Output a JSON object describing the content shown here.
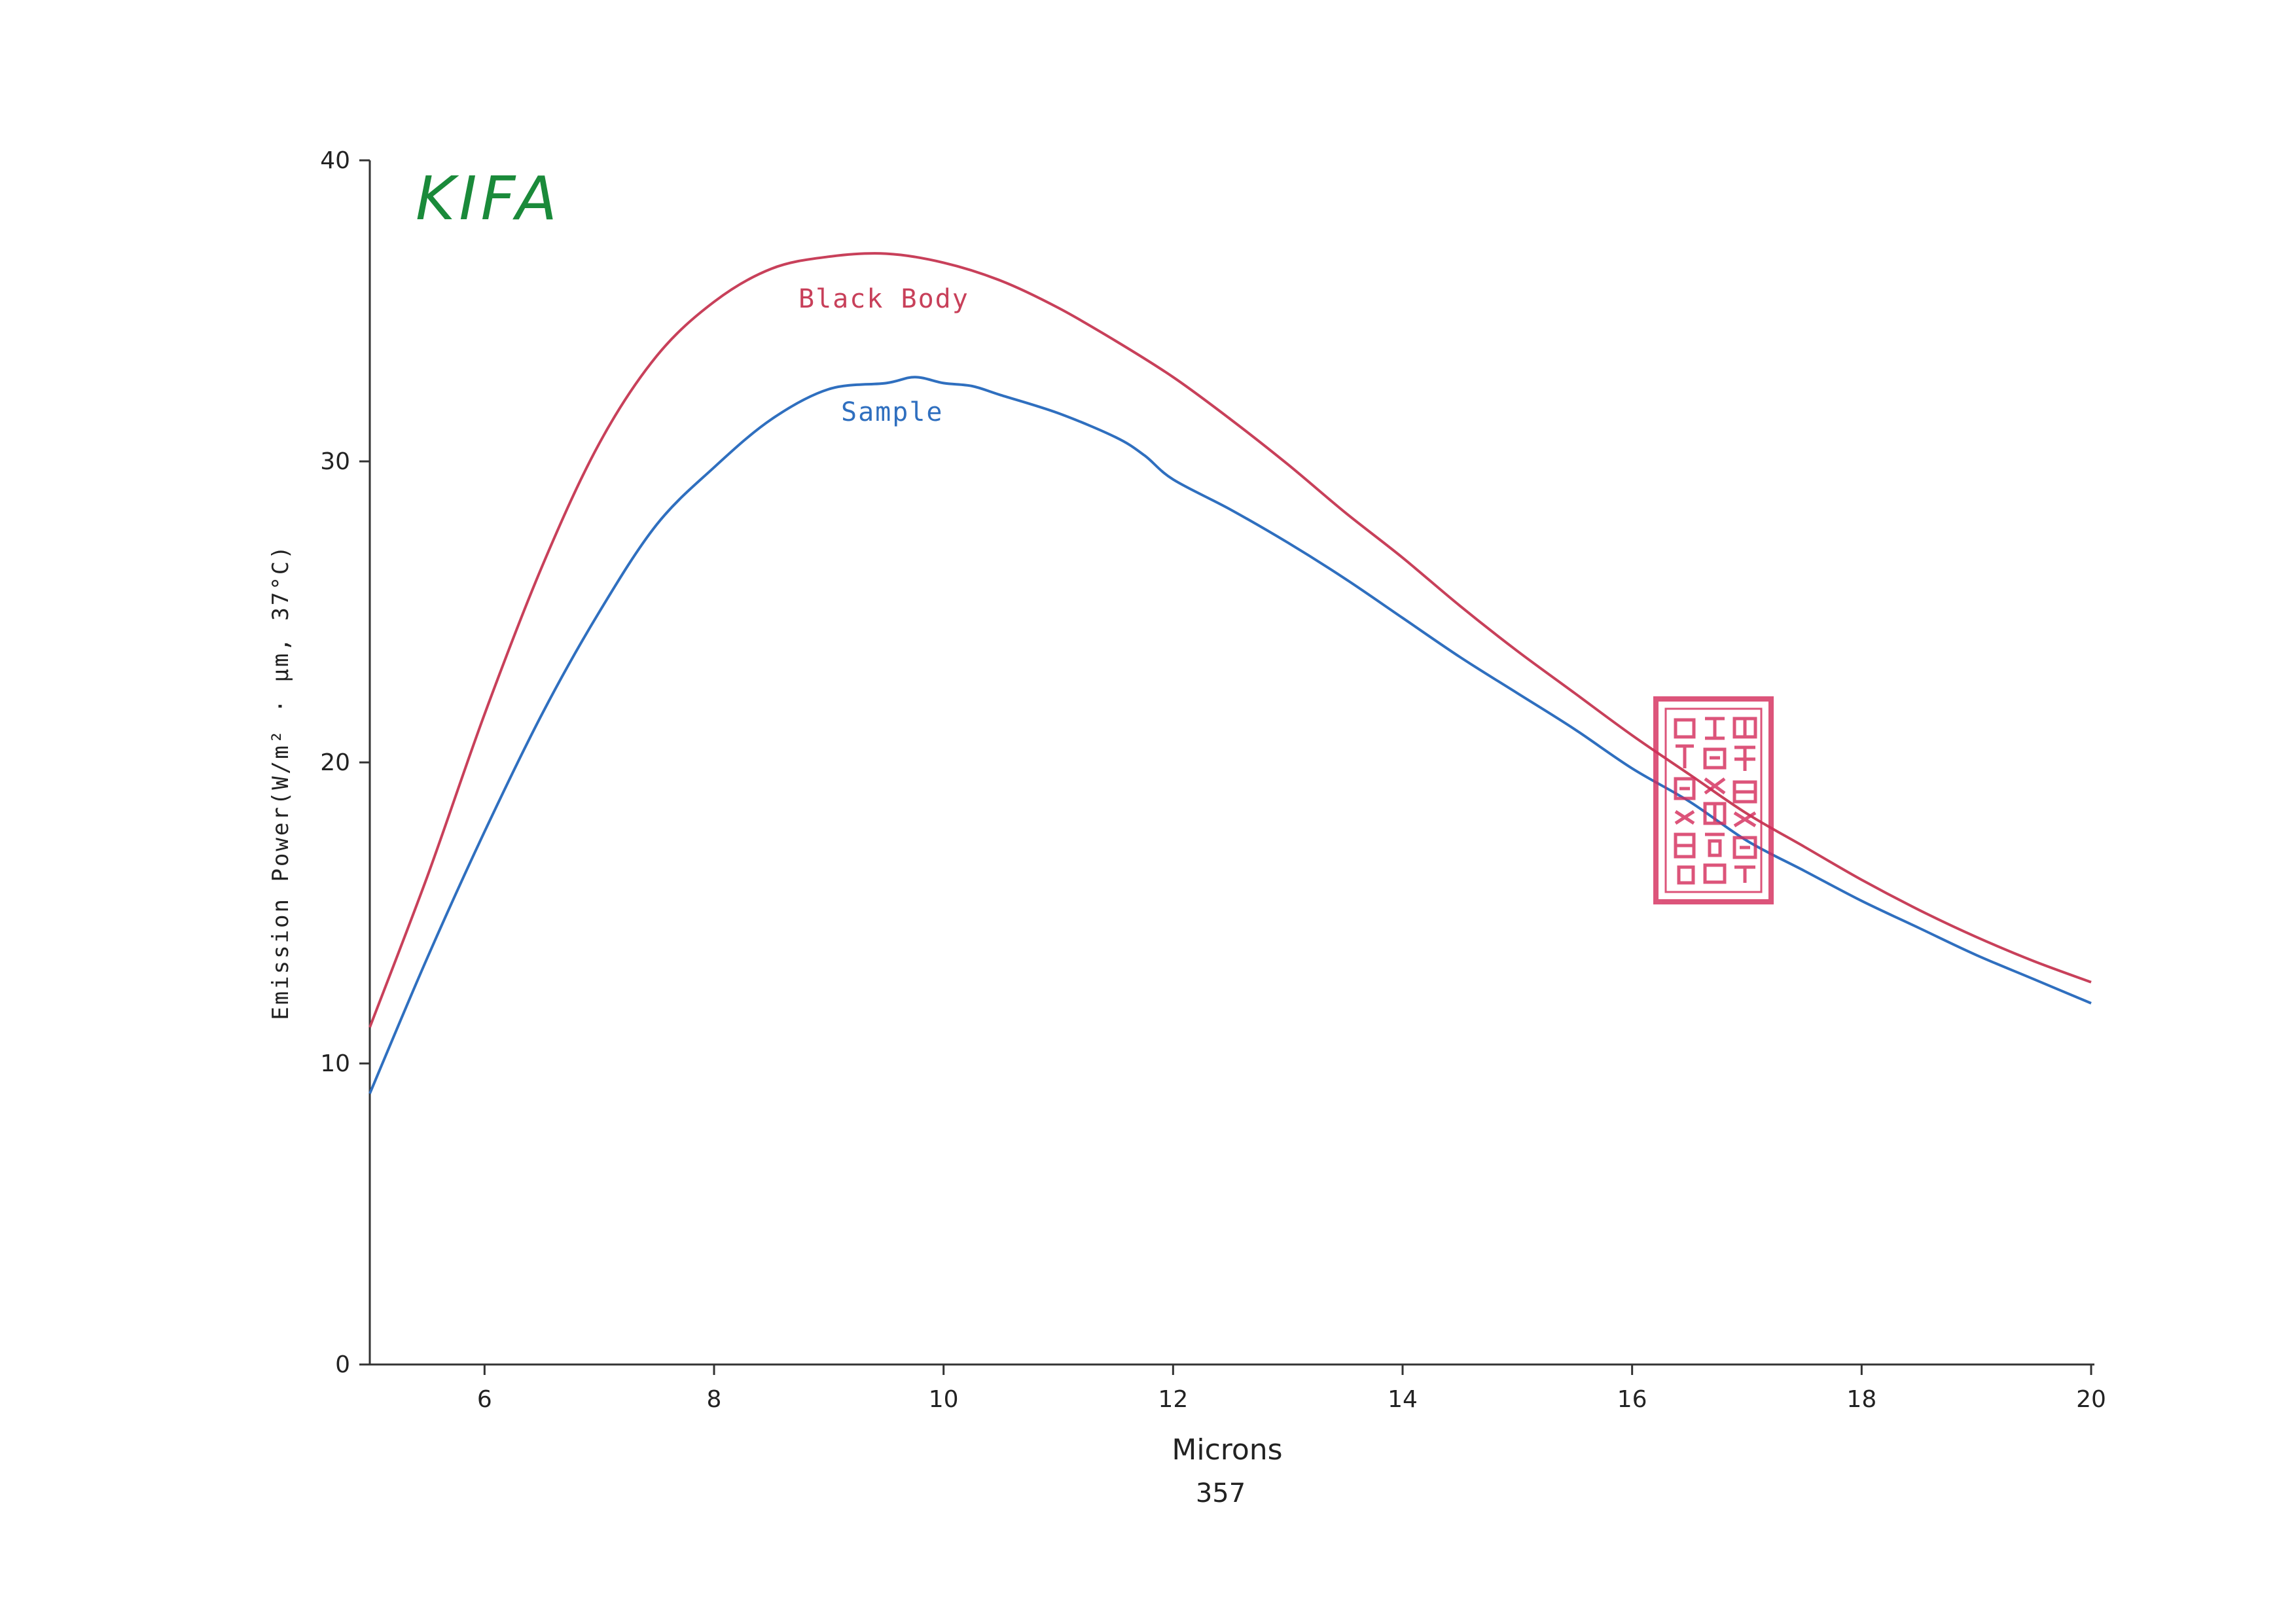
{
  "logo": {
    "text": "KIFA",
    "color": "#1a8a3a"
  },
  "page_number": "357",
  "colors": {
    "black_body": "#c8405a",
    "sample": "#2f6fbf",
    "axis": "#333333",
    "stamp": "#d42a5a"
  },
  "stamp": {
    "type": "seal",
    "color": "#d42a5a"
  },
  "chart_data": {
    "type": "line",
    "xlabel": "Microns",
    "ylabel": "Emission Power(W/m² · μm, 37°C)",
    "xlim": [
      5,
      20
    ],
    "ylim": [
      0,
      40
    ],
    "xticks": [
      "6",
      "8",
      "10",
      "12",
      "14",
      "16",
      "18",
      "20"
    ],
    "yticks": [
      "0",
      "10",
      "20",
      "30",
      "40"
    ],
    "grid": false,
    "series": [
      {
        "name": "Black Body",
        "color": "#c8405a",
        "x": [
          5.0,
          5.5,
          6.0,
          6.5,
          7.0,
          7.5,
          8.0,
          8.5,
          9.0,
          9.5,
          10.0,
          10.5,
          11.0,
          11.5,
          12.0,
          12.5,
          13.0,
          13.5,
          14.0,
          14.5,
          15.0,
          15.5,
          16.0,
          16.5,
          17.0,
          17.5,
          18.0,
          18.5,
          19.0,
          19.5,
          20.0
        ],
        "y": [
          11.2,
          16.2,
          21.6,
          26.5,
          30.6,
          33.5,
          35.3,
          36.4,
          36.8,
          36.9,
          36.6,
          36.0,
          35.1,
          34.0,
          32.8,
          31.4,
          29.9,
          28.3,
          26.8,
          25.2,
          23.7,
          22.3,
          20.9,
          19.6,
          18.3,
          17.2,
          16.1,
          15.1,
          14.2,
          13.4,
          12.7
        ]
      },
      {
        "name": "Sample",
        "color": "#2f6fbf",
        "x": [
          5.0,
          5.5,
          6.0,
          6.5,
          7.0,
          7.5,
          8.0,
          8.5,
          9.0,
          9.5,
          9.75,
          10.0,
          10.25,
          10.5,
          11.0,
          11.5,
          11.75,
          12.0,
          12.5,
          13.0,
          13.5,
          14.0,
          14.5,
          15.0,
          15.5,
          16.0,
          16.5,
          17.0,
          17.5,
          18.0,
          18.5,
          19.0,
          19.5,
          20.0
        ],
        "y": [
          9.0,
          13.5,
          17.7,
          21.6,
          25.0,
          27.9,
          29.8,
          31.4,
          32.4,
          32.6,
          32.8,
          32.6,
          32.5,
          32.2,
          31.6,
          30.8,
          30.2,
          29.4,
          28.4,
          27.3,
          26.1,
          24.8,
          23.5,
          22.3,
          21.1,
          19.8,
          18.7,
          17.4,
          16.4,
          15.4,
          14.5,
          13.6,
          12.8,
          12.0
        ]
      }
    ]
  }
}
